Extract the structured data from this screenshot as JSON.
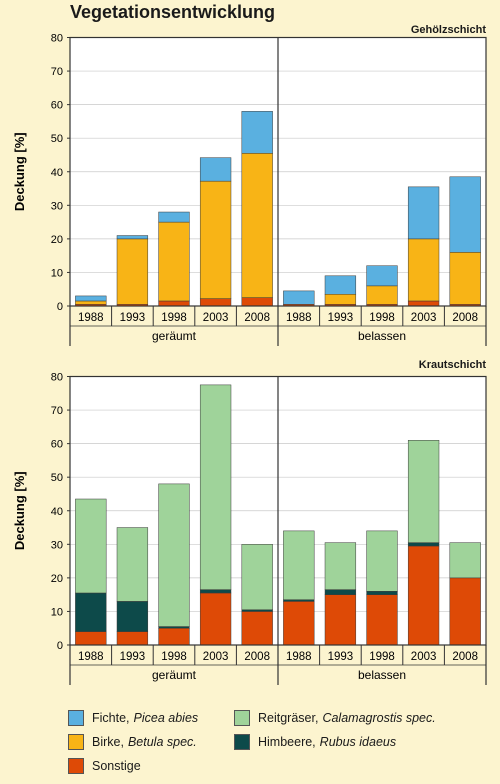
{
  "title": "Vegetationsentwicklung",
  "colors": {
    "fichte": "#5ab0e0",
    "birke": "#f8b416",
    "reitgraeser": "#9fd39a",
    "himbeere": "#0d4a4a",
    "sonstige": "#de4a06"
  },
  "legend": [
    {
      "key": "fichte",
      "name": "Fichte,",
      "latin": "Picea abies"
    },
    {
      "key": "birke",
      "name": "Birke,",
      "latin": "Betula spec."
    },
    {
      "key": "sonstige",
      "name": "Sonstige",
      "latin": ""
    },
    {
      "key": "reitgraeser",
      "name": "Reitgräser,",
      "latin": "Calamagrostis spec."
    },
    {
      "key": "himbeere",
      "name": "Himbeere,",
      "latin": "Rubus idaeus"
    }
  ],
  "chart_data": [
    {
      "type": "bar",
      "stacked": true,
      "panel_label": "Gehölzschicht",
      "ylabel": "Deckung [%]",
      "ylim": [
        0,
        80
      ],
      "yticks": [
        0,
        10,
        20,
        30,
        40,
        50,
        60,
        70,
        80
      ],
      "groups": [
        "geräumt",
        "belassen"
      ],
      "categories": [
        "1988",
        "1993",
        "1998",
        "2003",
        "2008"
      ],
      "series": [
        {
          "key": "sonstige",
          "values": {
            "geräumt": [
              0.5,
              0.5,
              1.5,
              2.2,
              2.5
            ],
            "belassen": [
              0.5,
              0.5,
              0.5,
              1.5,
              0.5
            ]
          }
        },
        {
          "key": "birke",
          "values": {
            "geräumt": [
              1.0,
              19.5,
              23.5,
              35.0,
              43.0
            ],
            "belassen": [
              0.0,
              3.0,
              5.5,
              18.5,
              15.5
            ]
          }
        },
        {
          "key": "fichte",
          "values": {
            "geräumt": [
              1.5,
              1.0,
              3.0,
              7.0,
              12.5
            ],
            "belassen": [
              4.0,
              5.5,
              6.0,
              15.5,
              22.5
            ]
          }
        }
      ]
    },
    {
      "type": "bar",
      "stacked": true,
      "panel_label": "Krautschicht",
      "ylabel": "Deckung [%]",
      "ylim": [
        0,
        80
      ],
      "yticks": [
        0,
        10,
        20,
        30,
        40,
        50,
        60,
        70,
        80
      ],
      "groups": [
        "geräumt",
        "belassen"
      ],
      "categories": [
        "1988",
        "1993",
        "1998",
        "2003",
        "2008"
      ],
      "series": [
        {
          "key": "sonstige",
          "values": {
            "geräumt": [
              4.0,
              4.0,
              5.0,
              15.5,
              10.0
            ],
            "belassen": [
              13.0,
              15.0,
              15.0,
              29.5,
              20.0
            ]
          }
        },
        {
          "key": "himbeere",
          "values": {
            "geräumt": [
              11.5,
              9.0,
              0.5,
              1.0,
              0.5
            ],
            "belassen": [
              0.5,
              1.5,
              1.0,
              1.0,
              0.0
            ]
          }
        },
        {
          "key": "reitgraeser",
          "values": {
            "geräumt": [
              28.0,
              22.0,
              42.5,
              61.0,
              19.5
            ],
            "belassen": [
              20.5,
              14.0,
              18.0,
              30.5,
              10.5
            ]
          }
        }
      ]
    }
  ]
}
